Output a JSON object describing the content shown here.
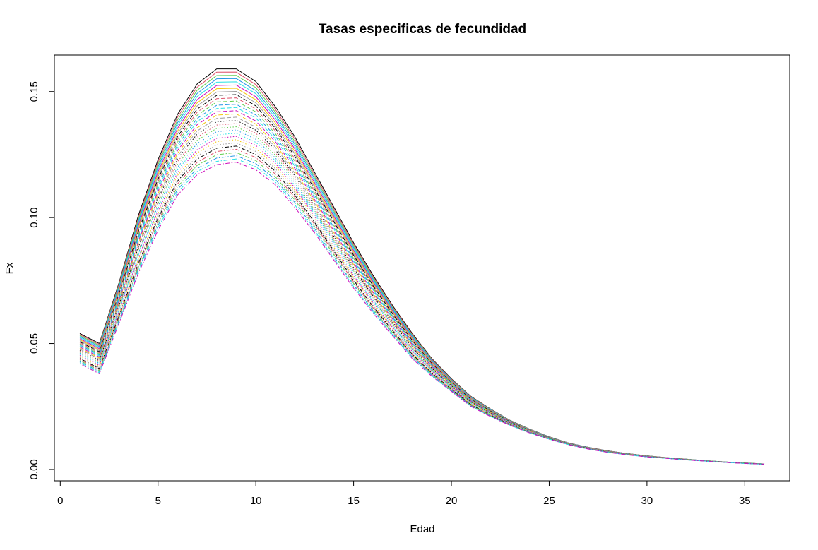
{
  "chart_data": {
    "type": "line",
    "title": "Tasas especificas de fecundidad",
    "xlabel": "Edad",
    "ylabel": "Fx",
    "xlim": [
      -0.3,
      37.3
    ],
    "ylim": [
      -0.0045,
      0.1645
    ],
    "grid": false,
    "legend": "none",
    "x_ticks": [
      0,
      5,
      10,
      15,
      20,
      25,
      30,
      35
    ],
    "x_tick_labels": [
      "0",
      "5",
      "10",
      "15",
      "20",
      "25",
      "30",
      "35"
    ],
    "y_ticks": [
      0.0,
      0.05,
      0.1,
      0.15
    ],
    "y_tick_labels": [
      "0.00",
      "0.05",
      "0.10",
      "0.15"
    ],
    "x": [
      1,
      2,
      3,
      4,
      5,
      6,
      7,
      8,
      9,
      10,
      11,
      12,
      13,
      14,
      15,
      16,
      17,
      18,
      19,
      20,
      21,
      22,
      23,
      24,
      25,
      26,
      27,
      28,
      29,
      30,
      31,
      32,
      33,
      34,
      35,
      36
    ],
    "series_count": 30,
    "series_colors": [
      "#000000",
      "#DF536B",
      "#61D04F",
      "#2297E6",
      "#28E2E5",
      "#CD0BBC",
      "#F5C710",
      "#9E9E9E"
    ],
    "series_styles": [
      "solid",
      "dashed",
      "dotted",
      "dotdash",
      "longdash",
      "twodash"
    ],
    "upper_envelope": [
      0.054,
      0.05,
      0.074,
      0.101,
      0.123,
      0.141,
      0.153,
      0.159,
      0.159,
      0.154,
      0.144,
      0.132,
      0.118,
      0.104,
      0.09,
      0.077,
      0.065,
      0.054,
      0.044,
      0.036,
      0.029,
      0.024,
      0.0195,
      0.016,
      0.013,
      0.0105,
      0.0088,
      0.0074,
      0.0063,
      0.0054,
      0.0047,
      0.0041,
      0.0035,
      0.003,
      0.0026,
      0.0022
    ],
    "lower_envelope": [
      0.042,
      0.038,
      0.058,
      0.078,
      0.095,
      0.109,
      0.117,
      0.121,
      0.122,
      0.119,
      0.113,
      0.104,
      0.094,
      0.083,
      0.072,
      0.062,
      0.053,
      0.044,
      0.037,
      0.031,
      0.025,
      0.021,
      0.0175,
      0.0145,
      0.012,
      0.0098,
      0.0081,
      0.0068,
      0.0058,
      0.005,
      0.0044,
      0.0038,
      0.0033,
      0.0028,
      0.0024,
      0.0021
    ]
  }
}
